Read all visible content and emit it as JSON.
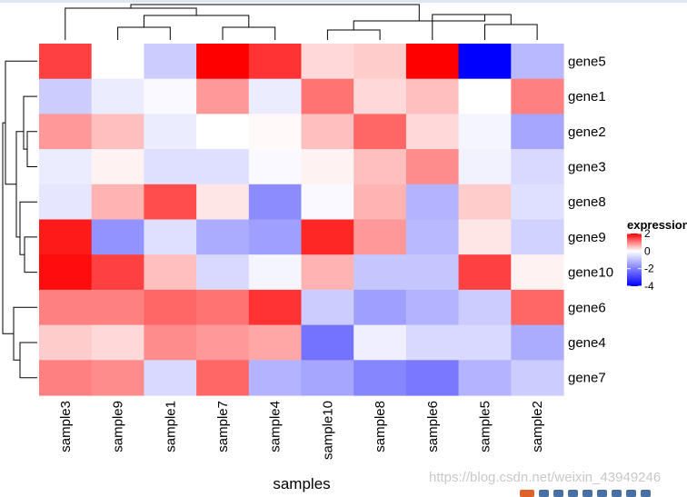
{
  "chart_data": {
    "type": "heatmap",
    "title": "",
    "xlabel": "samples",
    "ylabel": "",
    "columns": [
      "sample3",
      "sample9",
      "sample1",
      "sample7",
      "sample4",
      "sample10",
      "sample8",
      "sample6",
      "sample5",
      "sample2"
    ],
    "rows": [
      "gene5",
      "gene1",
      "gene2",
      "gene3",
      "gene8",
      "gene9",
      "gene10",
      "gene6",
      "gene4",
      "gene7"
    ],
    "values": [
      [
        1.5,
        0.0,
        -0.8,
        2.0,
        1.6,
        0.3,
        0.4,
        2.0,
        -4.0,
        -1.1
      ],
      [
        -0.8,
        -0.3,
        -0.1,
        0.8,
        -0.3,
        1.1,
        0.3,
        0.5,
        0.0,
        1.0
      ],
      [
        0.8,
        0.5,
        -0.3,
        0.0,
        0.05,
        0.5,
        1.2,
        0.3,
        -0.15,
        -1.4
      ],
      [
        -0.3,
        0.1,
        -0.5,
        -0.5,
        -0.1,
        0.1,
        0.5,
        0.9,
        -0.2,
        -0.6
      ],
      [
        -0.4,
        0.6,
        1.4,
        0.2,
        -1.8,
        -0.1,
        0.6,
        -1.2,
        0.4,
        -0.5
      ],
      [
        1.8,
        -1.7,
        -0.5,
        -1.3,
        -1.5,
        1.7,
        0.8,
        -1.1,
        0.2,
        -0.7
      ],
      [
        1.9,
        1.5,
        0.5,
        -0.6,
        -0.15,
        0.6,
        -0.9,
        -0.9,
        1.5,
        0.1
      ],
      [
        1.0,
        1.0,
        1.2,
        1.1,
        1.6,
        -0.8,
        -1.5,
        -1.2,
        -0.8,
        1.2
      ],
      [
        0.4,
        0.3,
        0.9,
        0.8,
        0.7,
        -2.2,
        -0.25,
        -0.6,
        -0.6,
        -1.3
      ],
      [
        1.0,
        0.9,
        -0.6,
        1.2,
        -1.2,
        -1.4,
        -1.9,
        -2.1,
        -1.2,
        -0.8
      ]
    ],
    "color_scale": {
      "low": "#0000ff",
      "mid": "#ffffff",
      "high": "#ff0000",
      "range": [
        -4,
        2
      ]
    },
    "legend": {
      "title": "expression",
      "placement": "right",
      "ticks": [
        2,
        0,
        -2,
        -4
      ]
    },
    "column_dendrogram": true,
    "row_dendrogram": true
  },
  "watermark": "https://blog.csdn.net/weixin_43949246"
}
